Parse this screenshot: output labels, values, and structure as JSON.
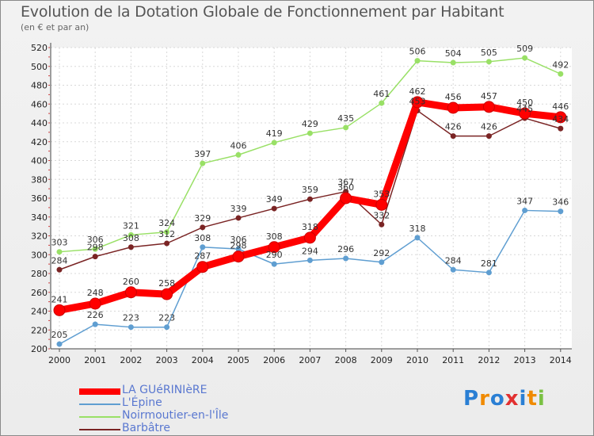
{
  "chart_data": {
    "type": "line",
    "title": "Evolution de la Dotation Globale de Fonctionnement par Habitant",
    "subtitle": "(en € et par an)",
    "xlabel": "",
    "ylabel": "",
    "ylim": [
      200,
      520
    ],
    "y_ticks": [
      200,
      220,
      240,
      260,
      280,
      300,
      320,
      340,
      360,
      380,
      400,
      420,
      440,
      460,
      480,
      500,
      520
    ],
    "categories": [
      "2000",
      "2001",
      "2002",
      "2003",
      "2004",
      "2005",
      "2006",
      "2007",
      "2008",
      "2009",
      "2010",
      "2011",
      "2012",
      "2013",
      "2014"
    ],
    "series": [
      {
        "name": "Noirmoutier-en-l'Île",
        "color": "#99e066",
        "values": [
          303,
          306,
          321,
          324,
          397,
          406,
          419,
          429,
          435,
          461,
          506,
          504,
          505,
          509,
          492
        ]
      },
      {
        "name": "Barbâtre",
        "color": "#7a2424",
        "values": [
          284,
          298,
          308,
          312,
          329,
          339,
          349,
          359,
          367,
          332,
          453,
          426,
          426,
          445,
          434
        ]
      },
      {
        "name": "L'Épine",
        "color": "#5f9ed1",
        "values": [
          205,
          226,
          223,
          223,
          308,
          306,
          290,
          294,
          296,
          292,
          318,
          284,
          281,
          347,
          346
        ]
      },
      {
        "name": "LA GUéRINIèRE",
        "color": "#ff0000",
        "values": [
          241,
          248,
          260,
          258,
          287,
          298,
          308,
          318,
          360,
          353,
          462,
          456,
          457,
          450,
          446
        ]
      }
    ],
    "legend": [
      {
        "label": "LA GUéRINIèRE",
        "color": "#ff0000"
      },
      {
        "label": "L'Épine",
        "color": "#5f9ed1"
      },
      {
        "label": "Noirmoutier-en-l'Île",
        "color": "#99e066"
      },
      {
        "label": "Barbâtre",
        "color": "#7a2424"
      }
    ]
  },
  "logo": {
    "letters": [
      "P",
      "r",
      "o",
      "x",
      "i",
      "t",
      "i"
    ],
    "colors": [
      "#2a7fd4",
      "#f08a00",
      "#2a7fd4",
      "#e23030",
      "#2a7fd4",
      "#f08a00",
      "#7ac143"
    ]
  }
}
